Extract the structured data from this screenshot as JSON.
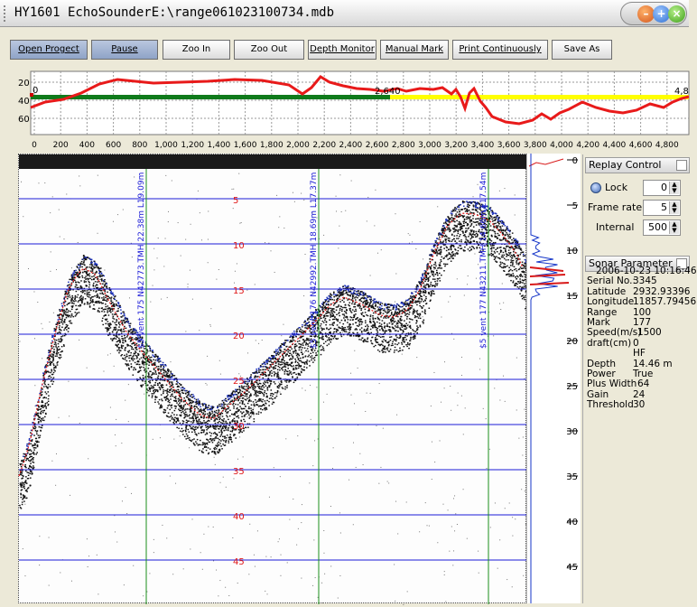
{
  "window": {
    "title": "HY1601 EchoSounderE:\\range061023100734.mdb"
  },
  "toolbar": {
    "open_project": "Open Progect",
    "pause": "Pause",
    "zoom_in": "Zoo In",
    "zoom_out": "Zoo Out",
    "depth_monitor": "Depth Monitor",
    "manual_mark": "Manual Mark",
    "print_continuously": "Print Continuously",
    "save_as": "Save As"
  },
  "overview_chart": {
    "y_ticks": [
      "20",
      "40",
      "60"
    ],
    "x_ticks": [
      "0",
      "200",
      "400",
      "600",
      "800",
      "1,000",
      "1,200",
      "1,400",
      "1,600",
      "1,800",
      "2,000",
      "2,200",
      "2,400",
      "2,600",
      "2,800",
      "3,000",
      "3,200",
      "3,400",
      "3,600",
      "3,800",
      "4,000",
      "4,200",
      "4,400",
      "4,600",
      "4,800"
    ],
    "start_label": "0",
    "mid_label": "2,640",
    "end_label": "4,8",
    "colors": {
      "profile": "#e81a1a",
      "done_bar": "#0f7a1b",
      "todo_bar": "#ffff00"
    }
  },
  "echogram": {
    "depth_labels": [
      "5",
      "10",
      "15",
      "20",
      "25",
      "30",
      "35",
      "40",
      "45"
    ],
    "annotations": [
      "$5 vent 175 N42773.TMH 22.38m L19.09m",
      "$5 vent 176 N42992.TMH 18.69m L17.37m",
      "$5 vent 177 N43211.TMH 14.66m L17.54m"
    ],
    "colors": {
      "grid_line": "#1a1ad6",
      "event_line": "#1b8f1b",
      "depth_text": "#e01515",
      "bottom_trace": "#e82020"
    }
  },
  "depth_scale": {
    "ticks": [
      "0",
      "5",
      "10",
      "15",
      "20",
      "25",
      "30",
      "35",
      "40",
      "45"
    ]
  },
  "replay_control": {
    "title": "Replay Control",
    "lock_label": "Lock",
    "lock_value": "0",
    "frame_rate_label": "Frame rate",
    "frame_rate_value": "5",
    "internal_label": "Internal",
    "internal_value": "500"
  },
  "sonar_parameter": {
    "title": "Sonar Parameter",
    "datetime": "2006-10-23 10:16:46",
    "serial_no_label": "Serial No.:",
    "serial_no": "3345",
    "latitude_label": "Latitude",
    "latitude": "2932.93396",
    "longitude_label": "Longitude",
    "longitude": "11857.79456",
    "range_label": "Range",
    "range": "100",
    "mark_label": "Mark",
    "mark": "177",
    "speed_label": "Speed(m/s)",
    "speed": "1500",
    "draft_label": "draft(cm)",
    "draft": "0",
    "freq": "HF",
    "depth_label": "Depth",
    "depth": "14.46 m",
    "power_label": "Power",
    "power": "True",
    "plus_width_label": "Plus Width",
    "plus_width": "64",
    "gain_label": "Gain",
    "gain": "24",
    "threshold_label": "Threshold",
    "threshold": "30"
  }
}
